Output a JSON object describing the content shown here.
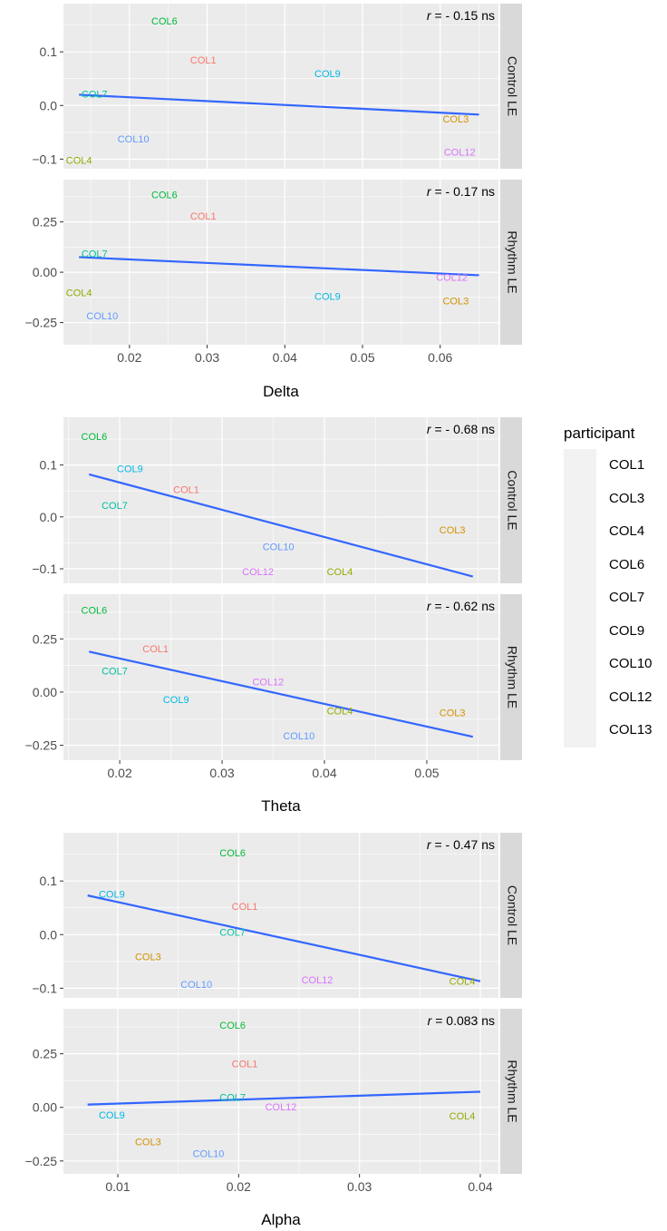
{
  "legend": {
    "title": "participant",
    "items": [
      "COL1",
      "COL3",
      "COL4",
      "COL6",
      "COL7",
      "COL9",
      "COL10",
      "COL12",
      "COL13"
    ]
  },
  "colors": {
    "COL1": "#F8766D",
    "COL3": "#D39200",
    "COL4": "#93AA00",
    "COL6": "#00BA38",
    "COL7": "#00C19F",
    "COL9": "#00B9E3",
    "COL10": "#619CFF",
    "COL12": "#DB72FB",
    "COL13": "#FF61C3",
    "line": "#3366FF",
    "panel": "#EBEBEB",
    "strip": "#D9D9D9"
  },
  "chart_data": [
    {
      "type": "scatter",
      "xlabel": "Delta",
      "xlim": [
        0.0115,
        0.0675
      ],
      "xticks": [
        0.02,
        0.03,
        0.04,
        0.05,
        0.06
      ],
      "xtick_labels": [
        "0.02",
        "0.03",
        "0.04",
        "0.05",
        "0.06"
      ],
      "panels": [
        {
          "strip": "Control LE",
          "annotation": {
            "r": "r",
            "text": " = - 0.15 ns"
          },
          "ylim": [
            -0.118,
            0.19
          ],
          "yticks": [
            -0.1,
            0.0,
            0.1
          ],
          "ytick_labels": [
            "−0.1",
            "0.0",
            "0.1"
          ],
          "line": [
            [
              0.0135,
              0.02
            ],
            [
              0.065,
              -0.017
            ]
          ],
          "points": [
            {
              "label": "COL6",
              "x": 0.0245,
              "y": 0.158
            },
            {
              "label": "COL1",
              "x": 0.0295,
              "y": 0.085
            },
            {
              "label": "COL9",
              "x": 0.0455,
              "y": 0.06
            },
            {
              "label": "COL7",
              "x": 0.0155,
              "y": 0.022
            },
            {
              "label": "COL3",
              "x": 0.062,
              "y": -0.025
            },
            {
              "label": "COL10",
              "x": 0.0205,
              "y": -0.062
            },
            {
              "label": "COL12",
              "x": 0.0625,
              "y": -0.087
            },
            {
              "label": "COL4",
              "x": 0.0135,
              "y": -0.102
            }
          ]
        },
        {
          "strip": "Rhythm LE",
          "annotation": {
            "r": "r",
            "text": " = - 0.17 ns"
          },
          "ylim": [
            -0.36,
            0.46
          ],
          "yticks": [
            -0.25,
            0.0,
            0.25
          ],
          "ytick_labels": [
            "−0.25",
            "0.00",
            "0.25"
          ],
          "line": [
            [
              0.0135,
              0.075
            ],
            [
              0.065,
              -0.015
            ]
          ],
          "points": [
            {
              "label": "COL6",
              "x": 0.0245,
              "y": 0.385
            },
            {
              "label": "COL1",
              "x": 0.0295,
              "y": 0.28
            },
            {
              "label": "COL7",
              "x": 0.0155,
              "y": 0.092
            },
            {
              "label": "COL12",
              "x": 0.0615,
              "y": -0.025
            },
            {
              "label": "COL4",
              "x": 0.0135,
              "y": -0.102
            },
            {
              "label": "COL9",
              "x": 0.0455,
              "y": -0.118
            },
            {
              "label": "COL3",
              "x": 0.062,
              "y": -0.142
            },
            {
              "label": "COL10",
              "x": 0.0165,
              "y": -0.215
            }
          ]
        }
      ]
    },
    {
      "type": "scatter",
      "xlabel": "Theta",
      "xlim": [
        0.0145,
        0.057
      ],
      "xticks": [
        0.02,
        0.03,
        0.04,
        0.05
      ],
      "xtick_labels": [
        "0.02",
        "0.03",
        "0.04",
        "0.05"
      ],
      "panels": [
        {
          "strip": "Control LE",
          "annotation": {
            "r": "r",
            "text": " = - 0.68 ns"
          },
          "ylim": [
            -0.128,
            0.192
          ],
          "yticks": [
            -0.1,
            0.0,
            0.1
          ],
          "ytick_labels": [
            "−0.1",
            "0.0",
            "0.1"
          ],
          "line": [
            [
              0.017,
              0.082
            ],
            [
              0.0545,
              -0.115
            ]
          ],
          "points": [
            {
              "label": "COL6",
              "x": 0.0175,
              "y": 0.155
            },
            {
              "label": "COL9",
              "x": 0.021,
              "y": 0.093
            },
            {
              "label": "COL1",
              "x": 0.0265,
              "y": 0.053
            },
            {
              "label": "COL7",
              "x": 0.0195,
              "y": 0.022
            },
            {
              "label": "COL3",
              "x": 0.0525,
              "y": -0.025
            },
            {
              "label": "COL10",
              "x": 0.0355,
              "y": -0.057
            },
            {
              "label": "COL12",
              "x": 0.0335,
              "y": -0.105
            },
            {
              "label": "COL4",
              "x": 0.0415,
              "y": -0.105
            }
          ]
        },
        {
          "strip": "Rhythm LE",
          "annotation": {
            "r": "r",
            "text": " = - 0.62 ns"
          },
          "ylim": [
            -0.32,
            0.46
          ],
          "yticks": [
            -0.25,
            0.0,
            0.25
          ],
          "ytick_labels": [
            "−0.25",
            "0.00",
            "0.25"
          ],
          "line": [
            [
              0.017,
              0.19
            ],
            [
              0.0545,
              -0.21
            ]
          ],
          "points": [
            {
              "label": "COL6",
              "x": 0.0175,
              "y": 0.385
            },
            {
              "label": "COL1",
              "x": 0.0235,
              "y": 0.205
            },
            {
              "label": "COL7",
              "x": 0.0195,
              "y": 0.1
            },
            {
              "label": "COL12",
              "x": 0.0345,
              "y": 0.048
            },
            {
              "label": "COL9",
              "x": 0.0255,
              "y": -0.035
            },
            {
              "label": "COL4",
              "x": 0.0415,
              "y": -0.088
            },
            {
              "label": "COL3",
              "x": 0.0525,
              "y": -0.097
            },
            {
              "label": "COL10",
              "x": 0.0375,
              "y": -0.205
            }
          ]
        }
      ]
    },
    {
      "type": "scatter",
      "xlabel": "Alpha",
      "xlim": [
        0.0055,
        0.0415
      ],
      "xticks": [
        0.01,
        0.02,
        0.03,
        0.04
      ],
      "xtick_labels": [
        "0.01",
        "0.02",
        "0.03",
        "0.04"
      ],
      "panels": [
        {
          "strip": "Control LE",
          "annotation": {
            "r": "r",
            "text": " = - 0.47 ns"
          },
          "ylim": [
            -0.118,
            0.19
          ],
          "yticks": [
            -0.1,
            0.0,
            0.1
          ],
          "ytick_labels": [
            "−0.1",
            "0.0",
            "0.1"
          ],
          "line": [
            [
              0.0075,
              0.073
            ],
            [
              0.04,
              -0.087
            ]
          ],
          "points": [
            {
              "label": "COL6",
              "x": 0.0195,
              "y": 0.153
            },
            {
              "label": "COL9",
              "x": 0.0095,
              "y": 0.076
            },
            {
              "label": "COL1",
              "x": 0.0205,
              "y": 0.053
            },
            {
              "label": "COL7",
              "x": 0.0195,
              "y": 0.005
            },
            {
              "label": "COL3",
              "x": 0.0125,
              "y": -0.041
            },
            {
              "label": "COL12",
              "x": 0.0265,
              "y": -0.084
            },
            {
              "label": "COL4",
              "x": 0.0385,
              "y": -0.087
            },
            {
              "label": "COL10",
              "x": 0.0165,
              "y": -0.093
            }
          ]
        },
        {
          "strip": "Rhythm LE",
          "annotation": {
            "r": "r",
            "text": " = 0.083 ns"
          },
          "ylim": [
            -0.31,
            0.46
          ],
          "yticks": [
            -0.25,
            0.0,
            0.25
          ],
          "ytick_labels": [
            "−0.25",
            "0.00",
            "0.25"
          ],
          "line": [
            [
              0.0075,
              0.013
            ],
            [
              0.04,
              0.073
            ]
          ],
          "points": [
            {
              "label": "COL6",
              "x": 0.0195,
              "y": 0.383
            },
            {
              "label": "COL1",
              "x": 0.0205,
              "y": 0.203
            },
            {
              "label": "COL7",
              "x": 0.0195,
              "y": 0.048
            },
            {
              "label": "COL12",
              "x": 0.0235,
              "y": 0.004
            },
            {
              "label": "COL9",
              "x": 0.0095,
              "y": -0.035
            },
            {
              "label": "COL4",
              "x": 0.0385,
              "y": -0.04
            },
            {
              "label": "COL3",
              "x": 0.0125,
              "y": -0.16
            },
            {
              "label": "COL10",
              "x": 0.0175,
              "y": -0.215
            }
          ]
        }
      ]
    }
  ]
}
